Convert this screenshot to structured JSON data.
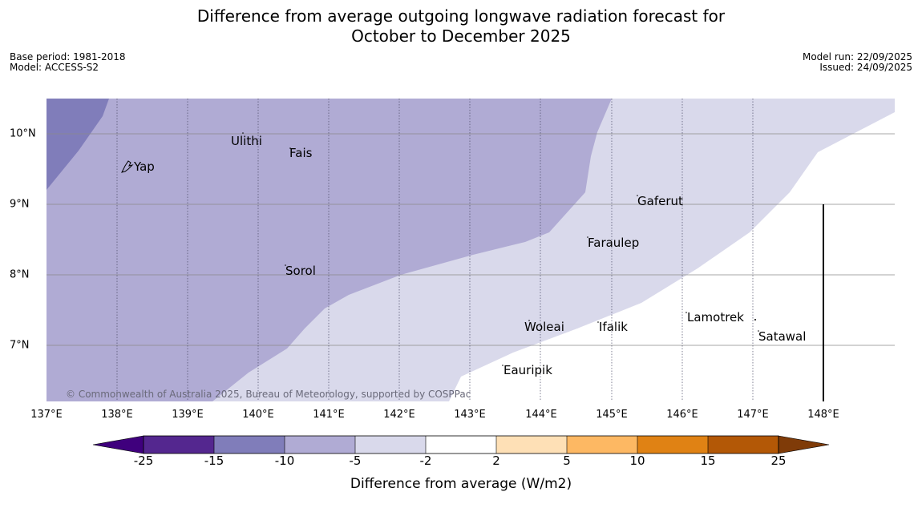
{
  "title": {
    "line1": "Difference from average outgoing longwave radiation forecast for",
    "line2": "October to December 2025"
  },
  "meta_left": {
    "base_period": "Base period: 1981-2018",
    "model": "Model: ACCESS-S2"
  },
  "meta_right": {
    "model_run": "Model run: 22/09/2025",
    "issued": "Issued: 24/09/2025"
  },
  "copyright": "© Commonwealth of Australia 2025, Bureau of Meteorology, supported by COSPPac",
  "axes": {
    "lon_labels": [
      "137°E",
      "138°E",
      "139°E",
      "140°E",
      "141°E",
      "142°E",
      "143°E",
      "144°E",
      "145°E",
      "146°E",
      "147°E",
      "148°E"
    ],
    "lat_labels": [
      "10°N",
      "9°N",
      "8°N",
      "7°N"
    ]
  },
  "places": [
    {
      "name": "Yap"
    },
    {
      "name": "Ulithi"
    },
    {
      "name": "Fais"
    },
    {
      "name": "Gaferut"
    },
    {
      "name": "Faraulep"
    },
    {
      "name": "Sorol"
    },
    {
      "name": "Lamotrek"
    },
    {
      "name": "Woleai"
    },
    {
      "name": "Ifalik"
    },
    {
      "name": "Satawal"
    },
    {
      "name": "Eauripik"
    }
  ],
  "colorbar": {
    "title": "Difference from average (W/m2)",
    "ticks": [
      "-25",
      "-15",
      "-10",
      "-5",
      "-2",
      "2",
      "5",
      "10",
      "15",
      "25"
    ],
    "colors": [
      "#3f007d",
      "#54278f",
      "#807dba",
      "#b0abd4",
      "#d9d9eb",
      "#ffffff",
      "#fee0b6",
      "#fdb863",
      "#e08214",
      "#b35806",
      "#7f3b08"
    ]
  },
  "legend_colors": {
    "band_m15_m10": "#807dba",
    "band_m10_m5": "#b0abd4",
    "band_m5_m2": "#d9d9eb",
    "band_m2_2": "#ffffff"
  }
}
